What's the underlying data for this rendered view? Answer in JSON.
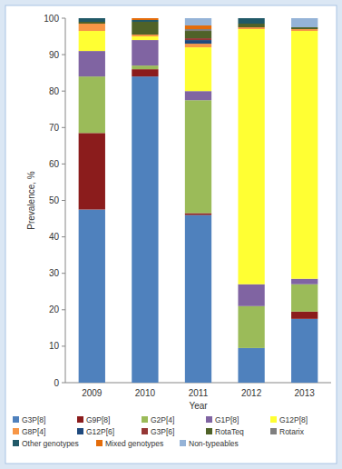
{
  "chart_data": {
    "type": "bar",
    "stacked": true,
    "x_label": "Year",
    "y_label": "Prevalence, %",
    "categories": [
      "2009",
      "2010",
      "2011",
      "2012",
      "2013"
    ],
    "ylim": [
      0,
      100
    ],
    "yticks": [
      0,
      10,
      20,
      30,
      40,
      50,
      60,
      70,
      80,
      90,
      100
    ],
    "legend": "bottom",
    "series": [
      {
        "name": "G3P[8]",
        "color": "#4f81bd",
        "values": [
          47.5,
          84,
          46,
          9.5,
          17.5
        ]
      },
      {
        "name": "G9P[8]",
        "color": "#8b1c1c",
        "values": [
          21,
          2,
          0.5,
          0,
          2
        ]
      },
      {
        "name": "G2P[4]",
        "color": "#9bbb59",
        "values": [
          15.5,
          1,
          31,
          11.5,
          7.5
        ]
      },
      {
        "name": "G1P[8]",
        "color": "#8064a2",
        "values": [
          7,
          7,
          2.5,
          6,
          1.5
        ]
      },
      {
        "name": "G12P[8]",
        "color": "#ffff33",
        "values": [
          5.5,
          1,
          12,
          70,
          68
        ]
      },
      {
        "name": "G8P[4]",
        "color": "#f79646",
        "values": [
          2,
          0.5,
          1,
          0.5,
          0.5
        ]
      },
      {
        "name": "G12P[6]",
        "color": "#1f497d",
        "values": [
          0,
          0,
          1,
          0,
          0
        ]
      },
      {
        "name": "G3P[6]",
        "color": "#953735",
        "values": [
          0,
          0,
          0.5,
          0,
          0
        ]
      },
      {
        "name": "RotaTeq",
        "color": "#4f6228",
        "values": [
          0.5,
          3.5,
          2,
          1,
          0.5
        ]
      },
      {
        "name": "Rotarix",
        "color": "#7f7f7f",
        "values": [
          0,
          0,
          0.5,
          0,
          0
        ]
      },
      {
        "name": "Other genotypes",
        "color": "#215968",
        "values": [
          1,
          0.5,
          0,
          1.5,
          0
        ]
      },
      {
        "name": "Mixed genotypes",
        "color": "#e46c0a",
        "values": [
          0,
          0.5,
          1,
          0,
          0
        ]
      },
      {
        "name": "Non-typeables",
        "color": "#95b3d7",
        "values": [
          0,
          0,
          2,
          0,
          2.5
        ]
      }
    ]
  }
}
